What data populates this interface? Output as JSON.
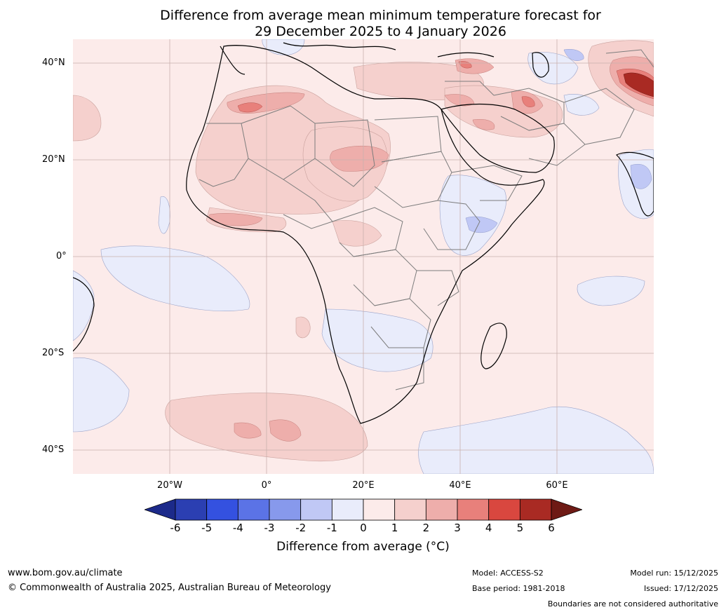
{
  "title": {
    "line1": "Difference from average mean minimum temperature forecast for",
    "line2": "29 December 2025 to 4 January 2026"
  },
  "map": {
    "lat_labels": [
      "40°N",
      "20°N",
      "0°",
      "20°S",
      "40°S"
    ],
    "lon_labels": [
      "20°W",
      "0°",
      "20°E",
      "40°E",
      "60°E"
    ],
    "ocean_fill": "#fcebea",
    "land_fill": "#fbe8e6"
  },
  "colorbar": {
    "title": "Difference from average ($^\\circ$C)",
    "title_display": "Difference from average (°C)",
    "ticks": [
      "-6",
      "-5",
      "-4",
      "-3",
      "-2",
      "-1",
      "0",
      "1",
      "2",
      "3",
      "4",
      "5",
      "6"
    ],
    "colors": [
      "#1c2a8a",
      "#2b3fb2",
      "#3451e0",
      "#5b73e6",
      "#8799ec",
      "#c0c8f5",
      "#e9ecfb",
      "#fcebea",
      "#f5d0cd",
      "#eeaeab",
      "#e8807b",
      "#d9473f",
      "#a92a23",
      "#6e1a15"
    ]
  },
  "footer": {
    "url": "www.bom.gov.au/climate",
    "copyright": "© Commonwealth of Australia 2025, Australian Bureau of Meteorology",
    "model": "Model: ACCESS-S2",
    "base_period": "Base period: 1981-2018",
    "model_run": "Model run: 15/12/2025",
    "issued": "Issued: 17/12/2025",
    "disclaimer": "Boundaries are not considered authoritative"
  }
}
